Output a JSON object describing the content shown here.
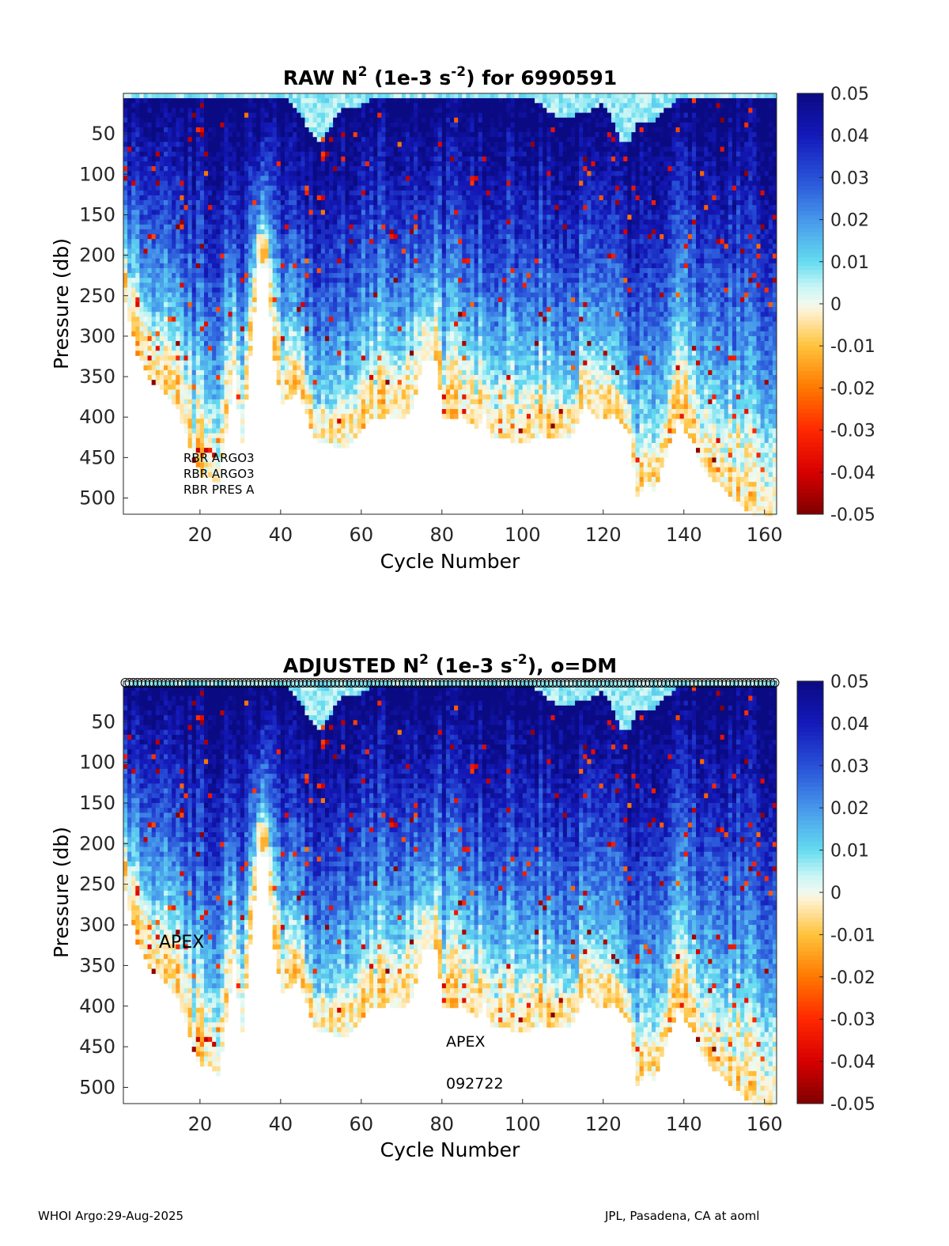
{
  "chart_data": [
    {
      "type": "heatmap",
      "id": "raw",
      "title_prefix": "RAW N",
      "title_sup": "2",
      "title_mid": " (1e-3 s",
      "title_sup2": "-2",
      "title_suffix": ") for 6990591",
      "xlabel": "Cycle Number",
      "ylabel": "Pressure (db)",
      "xlim": [
        1,
        163
      ],
      "ylim": [
        0,
        520
      ],
      "xticks": [
        20,
        40,
        60,
        80,
        100,
        120,
        140,
        160
      ],
      "yticks": [
        50,
        100,
        150,
        200,
        250,
        300,
        350,
        400,
        450,
        500
      ],
      "colorbar": {
        "ticks": [
          0.05,
          0.04,
          0.03,
          0.02,
          0.01,
          0,
          -0.01,
          -0.02,
          -0.03,
          -0.04,
          -0.05
        ],
        "tick_labels": [
          "0.05",
          "0.04",
          "0.03",
          "0.02",
          "0.01",
          "0",
          "-0.01",
          "-0.02",
          "-0.03",
          "-0.04",
          "-0.05"
        ],
        "range": [
          -0.05,
          0.05
        ]
      },
      "annotations": [
        "RBR ARGO3",
        "RBR ARGO3",
        "RBR PRES A"
      ],
      "dm_markers": false
    },
    {
      "type": "heatmap",
      "id": "adjusted",
      "title_prefix": "ADJUSTED N",
      "title_sup": "2",
      "title_mid": " (1e-3 s",
      "title_sup2": "-2",
      "title_suffix": "), o=DM",
      "xlabel": "Cycle Number",
      "ylabel": "Pressure (db)",
      "xlim": [
        1,
        163
      ],
      "ylim": [
        0,
        520
      ],
      "xticks": [
        20,
        40,
        60,
        80,
        100,
        120,
        140,
        160
      ],
      "yticks": [
        50,
        100,
        150,
        200,
        250,
        300,
        350,
        400,
        450,
        500
      ],
      "colorbar": {
        "ticks": [
          0.05,
          0.04,
          0.03,
          0.02,
          0.01,
          0,
          -0.01,
          -0.02,
          -0.03,
          -0.04,
          -0.05
        ],
        "tick_labels": [
          "0.05",
          "0.04",
          "0.03",
          "0.02",
          "0.01",
          "0",
          "-0.01",
          "-0.02",
          "-0.03",
          "-0.04",
          "-0.05"
        ],
        "range": [
          -0.05,
          0.05
        ]
      },
      "annotations": [
        "APEX",
        "APEX",
        "092722"
      ],
      "dm_markers": true
    }
  ],
  "footer": {
    "left": "WHOI Argo:29-Aug-2025",
    "right": "JPL, Pasadena, CA at aoml"
  }
}
